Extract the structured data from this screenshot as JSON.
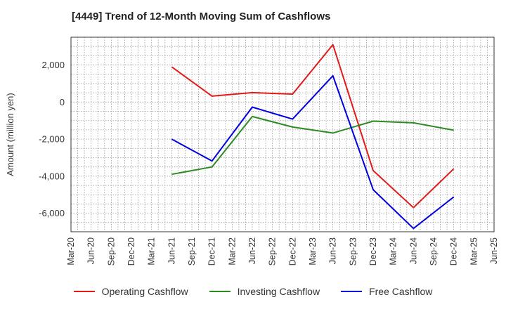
{
  "title": "[4449]  Trend of 12-Month Moving Sum of Cashflows",
  "chart_data": {
    "type": "line",
    "title": "[4449]  Trend of 12-Month Moving Sum of Cashflows",
    "xlabel": "",
    "ylabel": "Amount (million yen)",
    "categories": [
      "Mar-20",
      "Jun-20",
      "Sep-20",
      "Dec-20",
      "Mar-21",
      "Jun-21",
      "Sep-21",
      "Dec-21",
      "Mar-22",
      "Jun-22",
      "Sep-22",
      "Dec-22",
      "Mar-23",
      "Jun-23",
      "Sep-23",
      "Dec-23",
      "Mar-24",
      "Jun-24",
      "Sep-24",
      "Dec-24",
      "Mar-25",
      "Jun-25"
    ],
    "ylim": [
      -7000,
      3500
    ],
    "yticks": [
      2000,
      0,
      -2000,
      -4000,
      -6000
    ],
    "ytick_labels": [
      "2,000",
      "0",
      "-2,000",
      "-4,000",
      "-6,000"
    ],
    "grid": true,
    "legend_position": "bottom",
    "series": [
      {
        "name": "Operating Cashflow",
        "color": "#e31a1c",
        "values": [
          null,
          null,
          null,
          null,
          null,
          1900,
          null,
          320,
          null,
          510,
          null,
          430,
          null,
          3100,
          null,
          -3700,
          null,
          -5700,
          null,
          -3600,
          null,
          null
        ]
      },
      {
        "name": "Investing Cashflow",
        "color": "#2e8b23",
        "values": [
          null,
          null,
          null,
          null,
          null,
          -3900,
          null,
          -3500,
          null,
          -780,
          null,
          -1350,
          null,
          -1670,
          null,
          -1030,
          null,
          -1120,
          null,
          -1520,
          null,
          null
        ]
      },
      {
        "name": "Free Cashflow",
        "color": "#0000e0",
        "values": [
          null,
          null,
          null,
          null,
          null,
          -2000,
          null,
          -3180,
          null,
          -270,
          null,
          -920,
          null,
          1420,
          null,
          -4730,
          null,
          -6820,
          null,
          -5120,
          null,
          null
        ]
      }
    ]
  }
}
